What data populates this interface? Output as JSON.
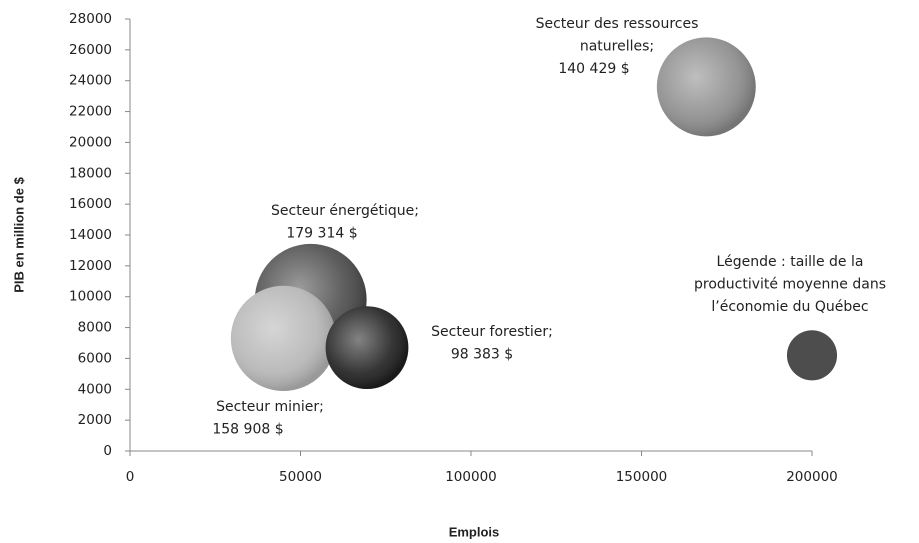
{
  "chart_data": {
    "type": "bubble",
    "xlabel": "Emplois",
    "ylabel": "PIB en million de $",
    "xlim": [
      0,
      200000
    ],
    "xticks": [
      0,
      50000,
      100000,
      150000,
      200000
    ],
    "ylim": [
      0,
      28000
    ],
    "yticks": [
      0,
      2000,
      4000,
      6000,
      8000,
      10000,
      12000,
      14000,
      16000,
      18000,
      20000,
      22000,
      24000,
      26000,
      28000
    ],
    "points": [
      {
        "label_lines": [
          "Secteur des ressources",
          "naturelles;"
        ],
        "x": 169000,
        "y": 23600,
        "size": 140429,
        "size_label": "140 429 $",
        "color": "#8a8a8a"
      },
      {
        "label_lines": [
          "Secteur énergétique;"
        ],
        "x": 53000,
        "y": 9800,
        "size": 179314,
        "size_label": "179 314 $",
        "color": "#4a4a4a"
      },
      {
        "label_lines": [
          "Secteur minier;"
        ],
        "x": 45000,
        "y": 7300,
        "size": 158908,
        "size_label": "158 908 $",
        "color": "#b4b4b4"
      },
      {
        "label_lines": [
          "Secteur forestier;"
        ],
        "x": 69500,
        "y": 6700,
        "size": 98383,
        "size_label": "98 383 $",
        "color": "#1e1e1e"
      },
      {
        "label_lines": [
          "Légende : taille de la",
          "productivité moyenne dans",
          "l’économie du Québec"
        ],
        "x": 200000,
        "y": 6200,
        "size": 36000,
        "color": "#4d4d4d"
      }
    ]
  }
}
